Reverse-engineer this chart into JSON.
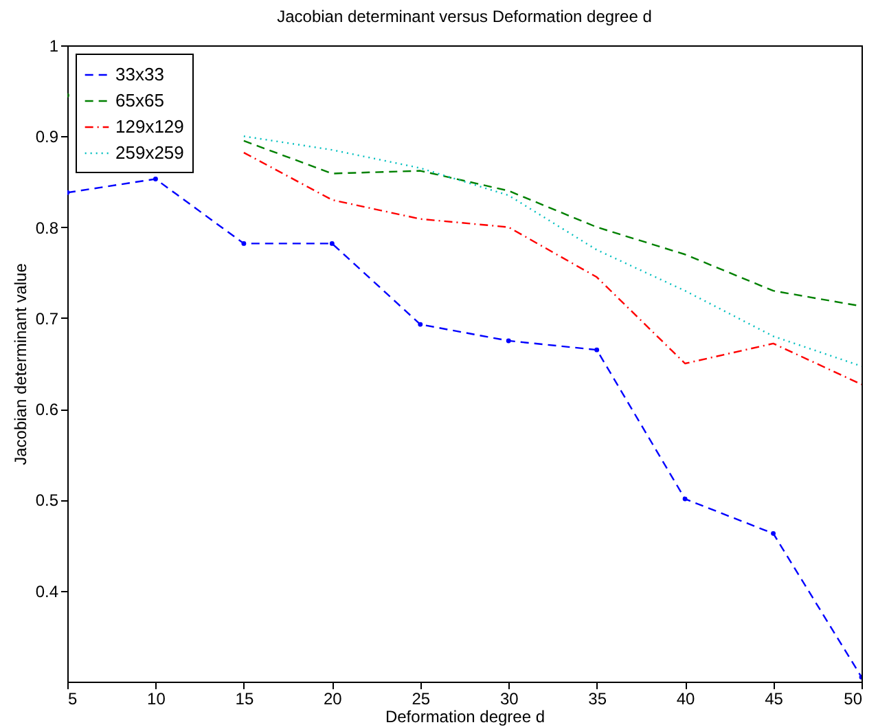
{
  "chart_data": {
    "type": "line",
    "title": "Jacobian determinant versus Deformation degree d",
    "xlabel": "Deformation degree d",
    "ylabel": "Jacobian determinant value",
    "x": [
      5,
      10,
      15,
      20,
      25,
      30,
      35,
      40,
      45,
      50
    ],
    "series": [
      {
        "name": "33x33",
        "color": "#0000ff",
        "line_style": "dashed",
        "marker": "circle",
        "values": [
          0.838,
          0.853,
          0.782,
          0.782,
          0.693,
          0.675,
          0.665,
          0.501,
          0.463,
          0.305
        ]
      },
      {
        "name": "65x65",
        "color": "#008000",
        "line_style": "dashed",
        "values": [
          0.945,
          null,
          0.895,
          0.859,
          0.862,
          0.84,
          0.8,
          0.77,
          0.73,
          0.713
        ]
      },
      {
        "name": "129x129",
        "color": "#ff0000",
        "line_style": "dashdot",
        "values": [
          null,
          null,
          0.882,
          0.83,
          0.809,
          0.8,
          0.745,
          0.65,
          0.672,
          0.627
        ]
      },
      {
        "name": "259x259",
        "color": "#00bfbf",
        "line_style": "dotted",
        "values": [
          null,
          null,
          0.9,
          0.885,
          0.865,
          0.835,
          0.775,
          0.73,
          0.68,
          0.647
        ]
      }
    ],
    "xlim": [
      5,
      50
    ],
    "xticks": [
      5,
      10,
      15,
      20,
      25,
      30,
      35,
      40,
      45,
      50
    ],
    "ylim": [
      0.3,
      1
    ],
    "yticks": [
      0.4,
      0.5,
      0.6,
      0.7,
      0.8,
      0.9,
      1
    ],
    "grid": false,
    "legend": "top left"
  }
}
